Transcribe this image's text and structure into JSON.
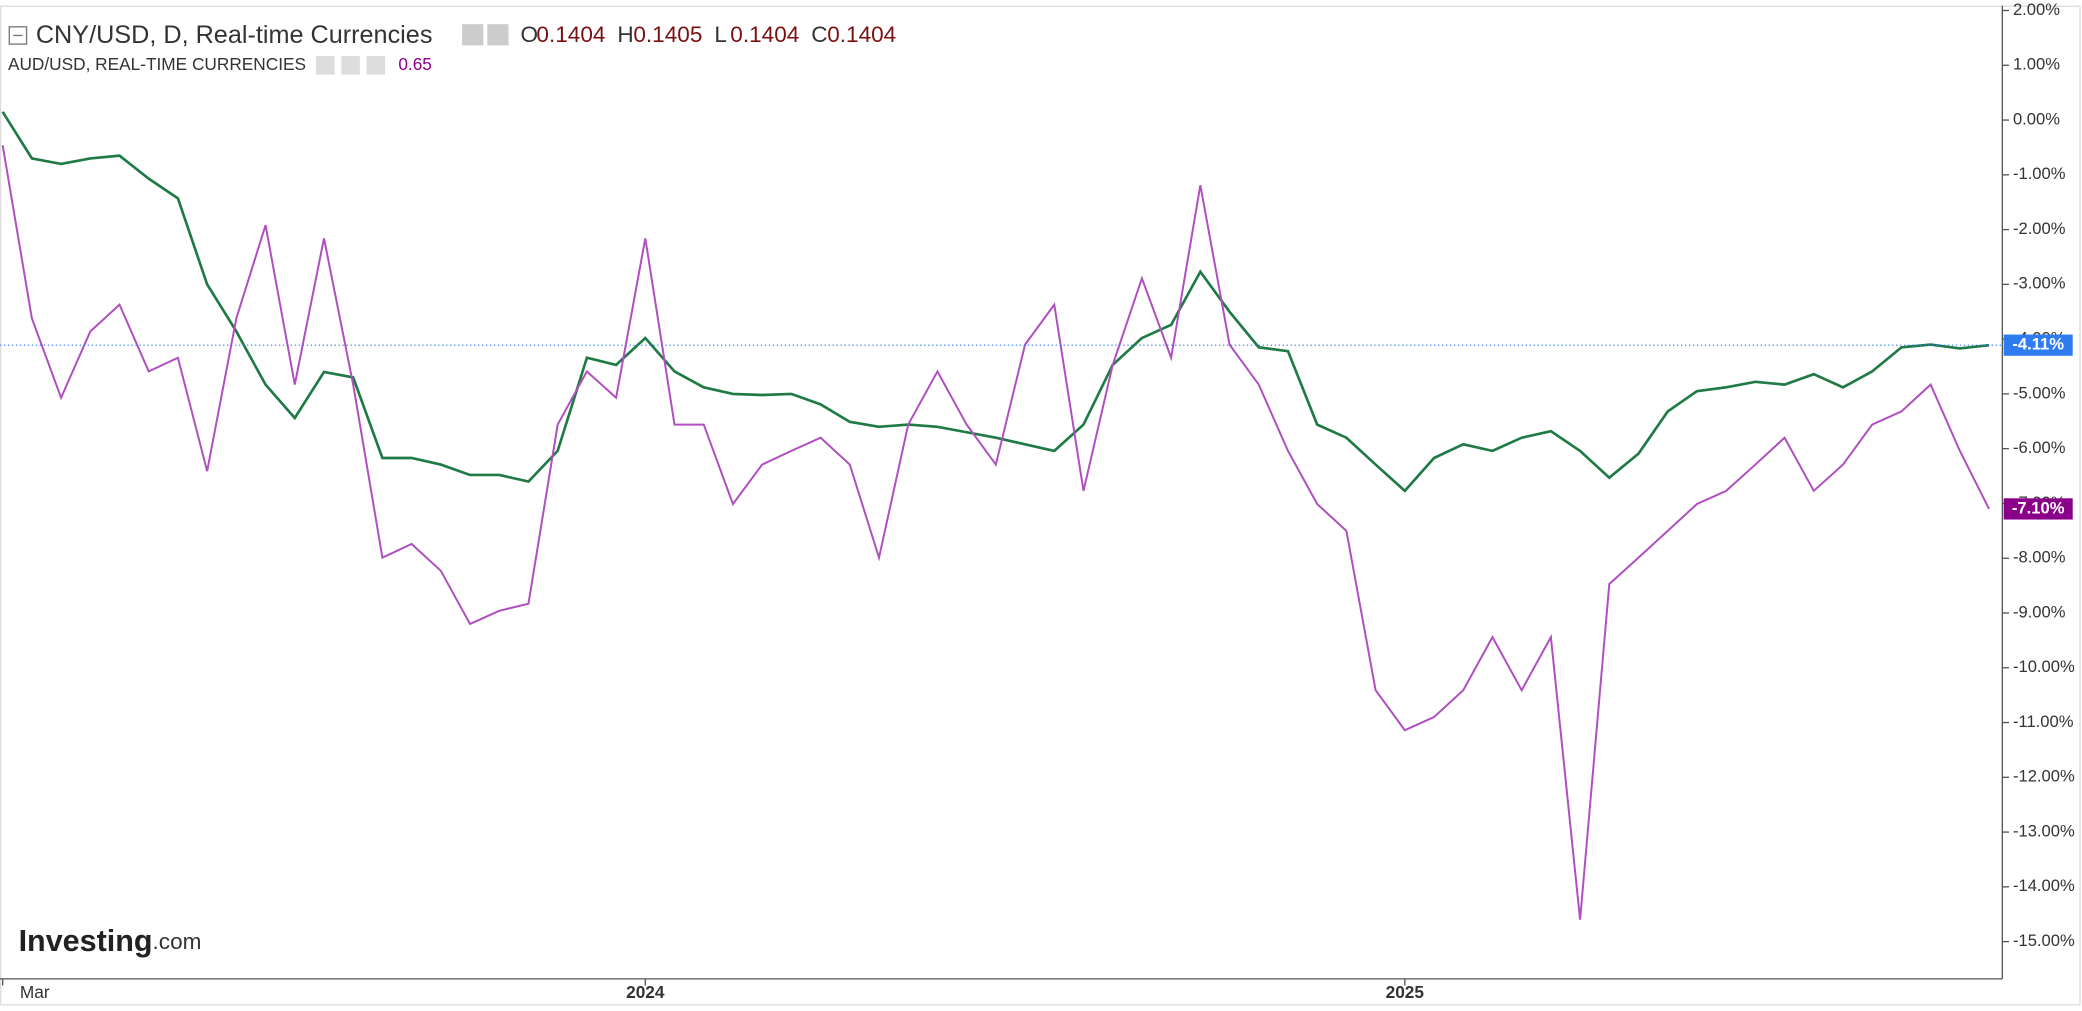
{
  "chart_data": {
    "type": "line",
    "title": "CNY/USD, D, Real-time Currencies",
    "ohlc": [
      {
        "label": "O",
        "value": "0.1404"
      },
      {
        "label": "H",
        "value": "0.1405"
      },
      {
        "label": "L",
        "value": "0.1404"
      },
      {
        "label": "C",
        "value": "0.1404"
      }
    ],
    "compare_title": "AUD/USD, REAL-TIME CURRENCIES",
    "compare_value": "0.65",
    "logo": {
      "main": "Investing",
      "suffix": ".com"
    },
    "categories": [
      "Mar",
      null,
      null,
      null,
      null,
      null,
      null,
      null,
      null,
      null,
      null,
      null,
      null,
      null,
      null,
      null,
      null,
      null,
      null,
      null,
      null,
      null,
      "2024",
      null,
      null,
      null,
      null,
      null,
      null,
      null,
      null,
      null,
      null,
      null,
      null,
      null,
      null,
      null,
      null,
      null,
      null,
      null,
      null,
      null,
      null,
      null,
      null,
      null,
      "2025",
      null,
      null,
      null,
      null,
      null,
      null,
      null,
      null,
      null,
      null,
      null,
      null,
      null,
      null,
      null,
      null,
      null,
      null,
      null,
      null
    ],
    "series": [
      {
        "name": "CNY/USD",
        "color": "#1f7a45",
        "badge_color": "#2f7bf0",
        "last_value_label": "-4.11%",
        "values": [
          0.15,
          -0.7,
          -0.8,
          -0.7,
          -0.65,
          -1.07,
          -1.43,
          -3.0,
          -3.86,
          -4.83,
          -5.44,
          -4.6,
          -4.7,
          -6.17,
          -6.17,
          -6.29,
          -6.48,
          -6.48,
          -6.6,
          -6.04,
          -4.34,
          -4.47,
          -3.98,
          -4.59,
          -4.88,
          -5.0,
          -5.02,
          -5.0,
          -5.19,
          -5.51,
          -5.6,
          -5.56,
          -5.6,
          -5.7,
          -5.8,
          -5.92,
          -6.04,
          -5.56,
          -4.47,
          -3.98,
          -3.74,
          -2.77,
          -3.5,
          -4.15,
          -4.22,
          -5.56,
          -5.8,
          -6.29,
          -6.77,
          -6.17,
          -5.92,
          -6.04,
          -5.8,
          -5.68,
          -6.04,
          -6.53,
          -6.09,
          -5.32,
          -4.95,
          -4.88,
          -4.78,
          -4.83,
          -4.64,
          -4.88,
          -4.59,
          -4.15,
          -4.1,
          -4.17,
          -4.11
        ]
      },
      {
        "name": "AUD/USD",
        "color": "#b04fc0",
        "badge_color": "#8b008b",
        "last_value_label": "-7.10%",
        "values": [
          -0.46,
          -3.62,
          -5.07,
          -3.86,
          -3.37,
          -4.59,
          -4.34,
          -6.41,
          -3.62,
          -1.92,
          -4.83,
          -2.16,
          -4.83,
          -7.99,
          -7.74,
          -8.23,
          -9.2,
          -8.96,
          -8.83,
          -5.56,
          -4.59,
          -5.07,
          -2.16,
          -5.56,
          -5.56,
          -7.01,
          -6.29,
          -6.04,
          -5.8,
          -6.29,
          -7.99,
          -5.56,
          -4.59,
          -5.56,
          -6.29,
          -4.1,
          -3.37,
          -6.77,
          -4.47,
          -2.89,
          -4.34,
          -1.19,
          -4.1,
          -4.83,
          -6.04,
          -7.01,
          -7.5,
          -10.41,
          -11.14,
          -10.9,
          -10.41,
          -9.44,
          -10.41,
          -9.44,
          -14.6,
          -8.47,
          -7.99,
          -7.5,
          -7.01,
          -6.77,
          -6.29,
          -5.8,
          -6.77,
          -6.29,
          -5.56,
          -5.32,
          -4.83,
          -6.04,
          -7.1
        ]
      }
    ],
    "ylim": [
      -15.68,
      2.09
    ],
    "yticks": [
      {
        "value": 2,
        "label": "2.00%"
      },
      {
        "value": 1,
        "label": "1.00%"
      },
      {
        "value": 0,
        "label": "0.00%"
      },
      {
        "value": -1,
        "label": "-1.00%"
      },
      {
        "value": -2,
        "label": "-2.00%"
      },
      {
        "value": -3,
        "label": "-3.00%"
      },
      {
        "value": -4,
        "label": "-4.00%"
      },
      {
        "value": -5,
        "label": "-5.00%"
      },
      {
        "value": -6,
        "label": "-6.00%"
      },
      {
        "value": -7,
        "label": "-7.00%"
      },
      {
        "value": -8,
        "label": "-8.00%"
      },
      {
        "value": -9,
        "label": "-9.00%"
      },
      {
        "value": -10,
        "label": "-10.00%"
      },
      {
        "value": -11,
        "label": "-11.00%"
      },
      {
        "value": -12,
        "label": "-12.00%"
      },
      {
        "value": -13,
        "label": "-13.00%"
      },
      {
        "value": -14,
        "label": "-14.00%"
      },
      {
        "value": -15,
        "label": "-15.00%"
      }
    ],
    "grid": false
  }
}
